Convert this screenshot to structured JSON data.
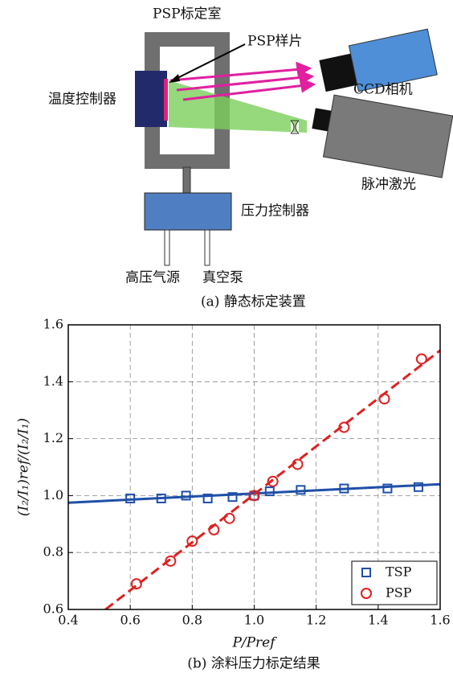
{
  "diagram": {
    "labels": {
      "chamber": "PSP标定室",
      "sample": "PSP样片",
      "temp_controller": "温度控制器",
      "ccd": "CCD相机",
      "laser": "脉冲激光",
      "pressure_controller": "压力控制器",
      "gas_source": "高压气源",
      "vacuum_pump": "真空泵"
    },
    "caption": "(a) 静态标定装置"
  },
  "chart_data": {
    "type": "scatter",
    "xlabel": "P/Pref",
    "ylabel": "(I₂/I₁)ref/(I₂/I₁)",
    "caption": "(b) 涂料压力标定结果",
    "xlim": [
      0.4,
      1.6
    ],
    "ylim": [
      0.6,
      1.6
    ],
    "xticks": [
      0.4,
      0.6,
      0.8,
      {
        "value": 1,
        "label": "1.0"
      },
      1.2,
      1.4,
      1.6
    ],
    "yticks": [
      0.6,
      0.8,
      {
        "value": 1,
        "label": "1.0"
      },
      1.2,
      1.4,
      1.6
    ],
    "grid": true,
    "legend": "lower right",
    "series": [
      {
        "name": "TSP",
        "color": "#1f4fa8",
        "marker": "square",
        "x": [
          0.6,
          0.7,
          0.78,
          0.85,
          0.93,
          1.0,
          1.05,
          1.15,
          1.29,
          1.43,
          1.53
        ],
        "values": [
          0.99,
          0.99,
          1.0,
          0.99,
          0.995,
          1.0,
          1.015,
          1.02,
          1.025,
          1.025,
          1.03
        ]
      },
      {
        "name": "PSP",
        "color": "#e02020",
        "marker": "circle",
        "x": [
          0.62,
          0.73,
          0.8,
          0.87,
          0.92,
          1.0,
          1.06,
          1.14,
          1.29,
          1.42,
          1.54
        ],
        "values": [
          0.69,
          0.77,
          0.84,
          0.88,
          0.92,
          1.0,
          1.05,
          1.11,
          1.24,
          1.34,
          1.48
        ]
      }
    ],
    "fit_lines": [
      {
        "color": "#1f4fa8",
        "style": "solid",
        "x": [
          0.4,
          1.6
        ],
        "values": [
          0.975,
          1.04
        ]
      },
      {
        "color": "#e02020",
        "style": "dashed",
        "x": [
          0.52,
          1.6
        ],
        "values": [
          0.6,
          1.51
        ]
      }
    ]
  }
}
